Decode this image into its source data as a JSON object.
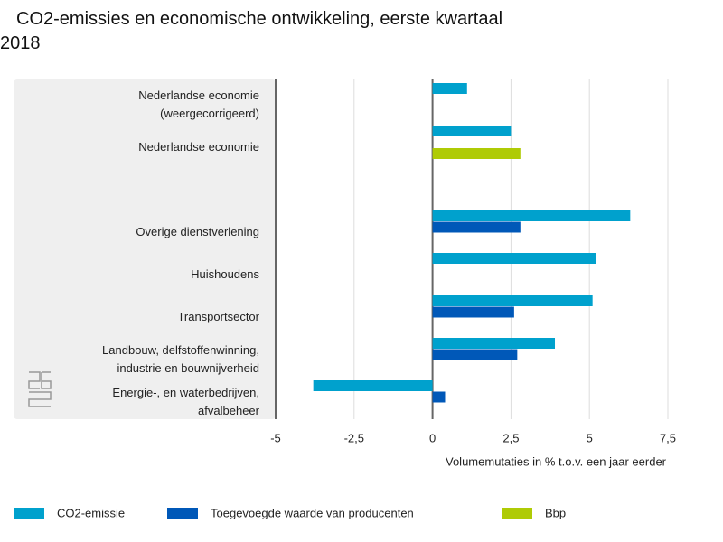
{
  "chart_data": {
    "type": "hbar",
    "title": "CO2-emissies en economische ontwikkeling, eerste kwartaal 2018",
    "x_label": "Volumemutaties in % t.o.v. een jaar eerder",
    "categories": [
      "Nederlandse economie\n(weergecorrigeerd)",
      "Nederlandse economie",
      null,
      "Overige dienstverlening",
      "Huishoudens",
      "Transportsector",
      "Landbouw, delfstoffenwinning,\nindustrie en bouwnijverheid",
      "Energie-, en waterbedrijven,\nafvalbeheer"
    ],
    "series": [
      {
        "name": "CO2-emissie",
        "color": "#00a1cd",
        "values": [
          1.1,
          2.5,
          null,
          6.3,
          5.2,
          5.1,
          3.9,
          -3.8
        ]
      },
      {
        "name": "Toegevoegde waarde van producenten",
        "color": "#0058b8",
        "values": [
          null,
          null,
          null,
          2.8,
          null,
          2.6,
          2.7,
          0.4
        ]
      },
      {
        "name": "Bbp",
        "color": "#afcb05",
        "values": [
          null,
          2.8,
          null,
          null,
          null,
          null,
          null,
          null
        ]
      }
    ],
    "xlim": [
      -5,
      7.5
    ],
    "xticks": [
      -5,
      {
        "value": -2.5,
        "label": "-2,5"
      },
      0,
      {
        "value": 2.5,
        "label": "2,5"
      },
      5,
      {
        "value": 7.5,
        "label": "7,5"
      }
    ],
    "grid": true
  }
}
